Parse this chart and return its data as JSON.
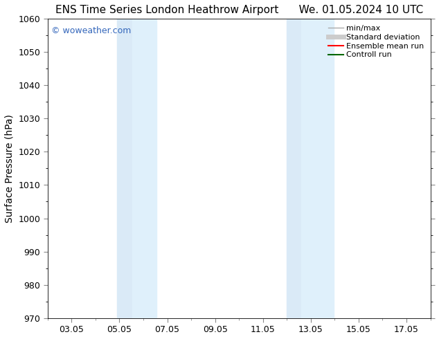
{
  "title": "ENS Time Series London Heathrow Airport      We. 01.05.2024 10 UTC",
  "ylabel": "Surface Pressure (hPa)",
  "ylim": [
    970,
    1060
  ],
  "yticks": [
    970,
    980,
    990,
    1000,
    1010,
    1020,
    1030,
    1040,
    1050,
    1060
  ],
  "xtick_labels": [
    "03.05",
    "05.05",
    "07.05",
    "09.05",
    "11.05",
    "13.05",
    "15.05",
    "17.05"
  ],
  "xtick_positions": [
    2,
    4,
    6,
    8,
    10,
    12,
    14,
    16
  ],
  "xlim": [
    1,
    17
  ],
  "background_color": "#ffffff",
  "plot_bg_color": "#ffffff",
  "shaded_bands": [
    {
      "xmin": 3.9,
      "xmax": 4.55,
      "color": "#daeaf7"
    },
    {
      "xmin": 4.55,
      "xmax": 5.55,
      "color": "#dff0fb"
    },
    {
      "xmin": 11.0,
      "xmax": 11.6,
      "color": "#daeaf7"
    },
    {
      "xmin": 11.6,
      "xmax": 12.95,
      "color": "#dff0fb"
    }
  ],
  "watermark_text": "© woweather.com",
  "watermark_color": "#3366bb",
  "legend_entries": [
    {
      "label": "min/max",
      "color": "#aaaaaa",
      "lw": 1.0
    },
    {
      "label": "Standard deviation",
      "color": "#cccccc",
      "lw": 5
    },
    {
      "label": "Ensemble mean run",
      "color": "#ff0000",
      "lw": 1.5
    },
    {
      "label": "Controll run",
      "color": "#006600",
      "lw": 1.5
    }
  ],
  "title_fontsize": 11,
  "tick_fontsize": 9,
  "ylabel_fontsize": 10,
  "legend_fontsize": 8
}
